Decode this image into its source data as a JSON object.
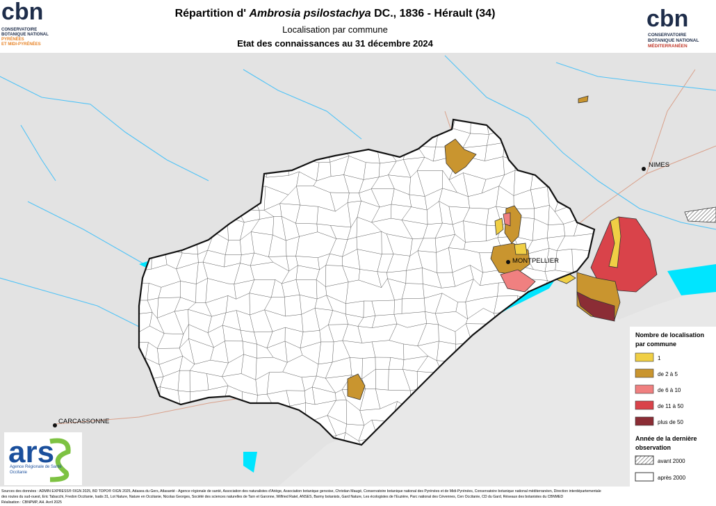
{
  "header": {
    "title_prefix": "Répartition d'",
    "title_species": "Ambrosia psilostachya",
    "title_suffix": "DC., 1836 - Hérault (34)",
    "subtitle": "Localisation par commune",
    "date_line": "Etat des connaissances au 31 décembre 2024"
  },
  "logo_left": {
    "brand": "cbn",
    "line1": "CONSERVATOIRE",
    "line2": "BOTANIQUE NATIONAL",
    "line3": "PYRÉNÉES",
    "line4": "ET MIDI-PYRÉNÉES"
  },
  "logo_right": {
    "brand": "cbn",
    "line1": "CONSERVATOIRE",
    "line2": "BOTANIQUE NATIONAL",
    "line3": "MÉDITERRANÉEN"
  },
  "logo_ars": {
    "brand": "ars",
    "line1": "Agence Régionale de Santé",
    "line2": "Occitanie"
  },
  "cities": [
    "NIMES",
    "MONTPELLIER",
    "CARCASSONNE"
  ],
  "legend": {
    "title1": "Nombre de localisation",
    "title2": "par commune",
    "classes": [
      {
        "label": "1",
        "color": "#f0cf45"
      },
      {
        "label": "de 2 à 5",
        "color": "#c9952f"
      },
      {
        "label": "de 6 à 10",
        "color": "#f08080"
      },
      {
        "label": "de 11 à 50",
        "color": "#d9434a"
      },
      {
        "label": "plus de 50",
        "color": "#8b2d35"
      }
    ],
    "year_title1": "Année de la dernière",
    "year_title2": "observation",
    "years": [
      "avant 2000",
      "après 2000"
    ]
  },
  "sources": [
    "Sources des données : ADMIN EXPRESS® ©IGN 2025, BD TOPO® ©IGN 2025, Adasea du Gers, Atlasanté - Agence régionale de santé, Association des naturalistes d'Ariège, Association botanique gersoise, Christian Maugé, Conservatoire botanique national des Pyrénées et de Midi-Pyrénées, Conservatoire botanique national méditerranéen, Direction interdépartementale",
    "des routes du sud-ouest, Eric Tabacchi, Fredon Occitanie, Isatis 31, Lot Nature, Nature en Occitanie, Nicolas Georges, Société des sciences naturelles de Tarn et Garonne, Wilfried Ratel, ANSES, Barmy botanists, Gard Nature, Les écologistes de l'Euzière, Parc national des Cévennes, Cen Occitanie, CD du Gard, Réseaux des botanistes du CBNMED",
    "Réalisation : CBNPMP, AH. Avril 2025"
  ]
}
